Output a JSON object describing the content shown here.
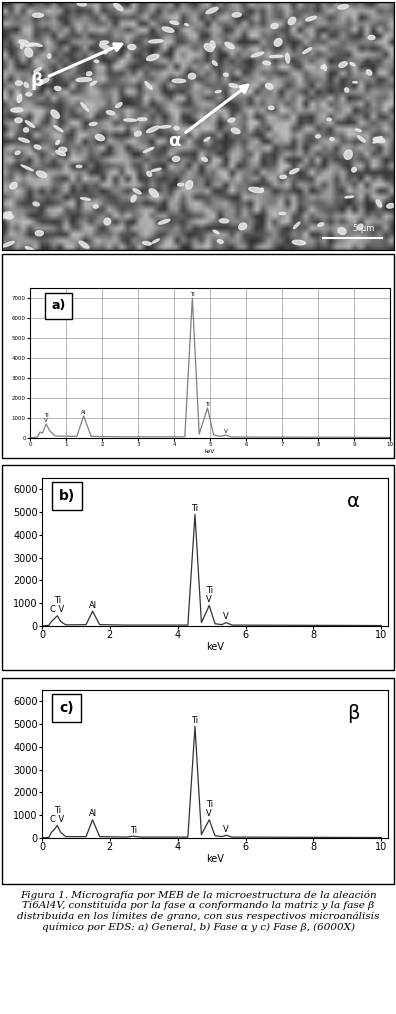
{
  "micrograph": {
    "phase_labels": [
      "β",
      "α"
    ],
    "scale_bar": "5 µm"
  },
  "chart_data": [
    {
      "type": "line",
      "panel": "a)",
      "xlabel": "keV",
      "color": "#808080",
      "grid": true,
      "x": [
        0,
        0.2,
        0.28,
        0.35,
        0.45,
        0.55,
        0.7,
        1.3,
        1.49,
        1.7,
        2.5,
        4.3,
        4.51,
        4.7,
        4.93,
        5.1,
        5.3,
        5.43,
        5.6,
        10
      ],
      "values": [
        0,
        50,
        300,
        250,
        700,
        350,
        100,
        80,
        1100,
        80,
        60,
        60,
        7000,
        200,
        1500,
        150,
        80,
        150,
        50,
        30
      ],
      "xlim": [
        0,
        10
      ],
      "xticks": [
        0,
        1,
        2,
        3,
        4,
        5,
        6,
        7,
        8,
        9,
        10
      ],
      "ylim": [
        0,
        7500
      ],
      "yticks": [
        0,
        1000,
        2000,
        3000,
        4000,
        5000,
        6000,
        7000
      ],
      "annotations": [
        {
          "text": "Ti\nV",
          "x": 0.45
        },
        {
          "text": "Al",
          "x": 1.49
        },
        {
          "text": "Ti",
          "x": 4.51
        },
        {
          "text": "Ti",
          "x": 4.93
        },
        {
          "text": "V",
          "x": 5.43
        }
      ]
    },
    {
      "type": "line",
      "panel": "b)",
      "phase": "α",
      "xlabel": "keV",
      "color": "#333333",
      "grid": false,
      "x": [
        0,
        0.2,
        0.28,
        0.35,
        0.45,
        0.55,
        0.7,
        1.3,
        1.49,
        1.7,
        2.5,
        4.3,
        4.51,
        4.7,
        4.93,
        5.1,
        5.3,
        5.43,
        5.6,
        10
      ],
      "values": [
        0,
        30,
        200,
        300,
        450,
        200,
        50,
        60,
        650,
        60,
        40,
        40,
        4900,
        150,
        900,
        100,
        60,
        150,
        40,
        20
      ],
      "xlim": [
        0,
        10.2
      ],
      "xticks": [
        0,
        2,
        4,
        6,
        8,
        10
      ],
      "ylim": [
        0,
        6500
      ],
      "yticks": [
        0,
        1000,
        2000,
        3000,
        4000,
        5000,
        6000
      ],
      "annotations": [
        {
          "text": "Ti\nC V",
          "x": 0.45
        },
        {
          "text": "Al",
          "x": 1.49
        },
        {
          "text": "Ti",
          "x": 4.51
        },
        {
          "text": "Ti\nV",
          "x": 4.93
        },
        {
          "text": "V",
          "x": 5.43
        }
      ]
    },
    {
      "type": "line",
      "panel": "c)",
      "phase": "β",
      "xlabel": "keV",
      "color": "#333333",
      "grid": false,
      "x": [
        0,
        0.2,
        0.28,
        0.35,
        0.45,
        0.55,
        0.7,
        1.3,
        1.49,
        1.7,
        2.5,
        2.7,
        2.9,
        4.3,
        4.51,
        4.7,
        4.93,
        5.1,
        5.3,
        5.43,
        5.6,
        10
      ],
      "values": [
        0,
        30,
        250,
        350,
        550,
        250,
        60,
        60,
        800,
        60,
        40,
        80,
        40,
        40,
        4900,
        150,
        800,
        100,
        60,
        120,
        40,
        20
      ],
      "xlim": [
        0,
        10.2
      ],
      "xticks": [
        0,
        2,
        4,
        6,
        8,
        10
      ],
      "ylim": [
        0,
        6500
      ],
      "yticks": [
        0,
        1000,
        2000,
        3000,
        4000,
        5000,
        6000
      ],
      "annotations": [
        {
          "text": "Ti\nC V",
          "x": 0.45
        },
        {
          "text": "Al",
          "x": 1.49
        },
        {
          "text": "Ti",
          "x": 2.7
        },
        {
          "text": "Ti",
          "x": 4.51
        },
        {
          "text": "Ti\nV",
          "x": 4.93
        },
        {
          "text": "V",
          "x": 5.43
        }
      ]
    }
  ],
  "caption": "Figura 1. Micrografía por MEB de la microestructura de la aleación Ti6Al4V, constituida por la fase α conformando la matriz y la fase β distribuida en los límites de grano, con sus respectivos microanálisis químico por EDS: a) General, b) Fase α y c) Fase β, (6000X)"
}
